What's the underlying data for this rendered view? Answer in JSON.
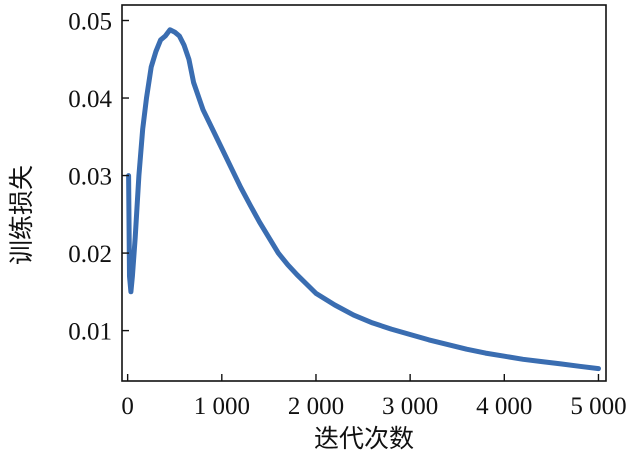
{
  "chart_data": {
    "type": "line",
    "title": "",
    "xlabel": "迭代次数",
    "ylabel": "训练损失",
    "xlim": [
      -60,
      5080
    ],
    "ylim": [
      0.0035,
      0.052
    ],
    "xticks": [
      0,
      1000,
      2000,
      3000,
      4000,
      5000
    ],
    "xtick_labels": [
      "0",
      "1 000",
      "2 000",
      "3 000",
      "4 000",
      "5 000"
    ],
    "yticks": [
      0.01,
      0.02,
      0.03,
      0.04,
      0.05
    ],
    "ytick_labels": [
      "0.01",
      "0.02",
      "0.03",
      "0.04",
      "0.05"
    ],
    "grid": false,
    "legend": "none",
    "line_color": "#3a6db1",
    "series": [
      {
        "x": [
          10,
          20,
          35,
          50,
          80,
          120,
          160,
          200,
          250,
          300,
          350,
          400,
          450,
          500,
          550,
          600,
          650,
          700,
          800,
          900,
          1000,
          1100,
          1200,
          1300,
          1400,
          1500,
          1600,
          1700,
          1800,
          1900,
          2000,
          2200,
          2400,
          2600,
          2800,
          3000,
          3200,
          3400,
          3600,
          3800,
          4000,
          4200,
          4400,
          4600,
          4800,
          5000
        ],
        "y": [
          0.03,
          0.017,
          0.015,
          0.017,
          0.022,
          0.03,
          0.036,
          0.04,
          0.044,
          0.046,
          0.0475,
          0.048,
          0.0488,
          0.0485,
          0.048,
          0.0468,
          0.045,
          0.042,
          0.0385,
          0.036,
          0.0335,
          0.031,
          0.0285,
          0.0262,
          0.024,
          0.022,
          0.02,
          0.0185,
          0.0172,
          0.016,
          0.0148,
          0.0133,
          0.012,
          0.011,
          0.0102,
          0.0095,
          0.0088,
          0.0082,
          0.0076,
          0.0071,
          0.0067,
          0.0063,
          0.006,
          0.0057,
          0.0054,
          0.0051
        ]
      }
    ]
  }
}
